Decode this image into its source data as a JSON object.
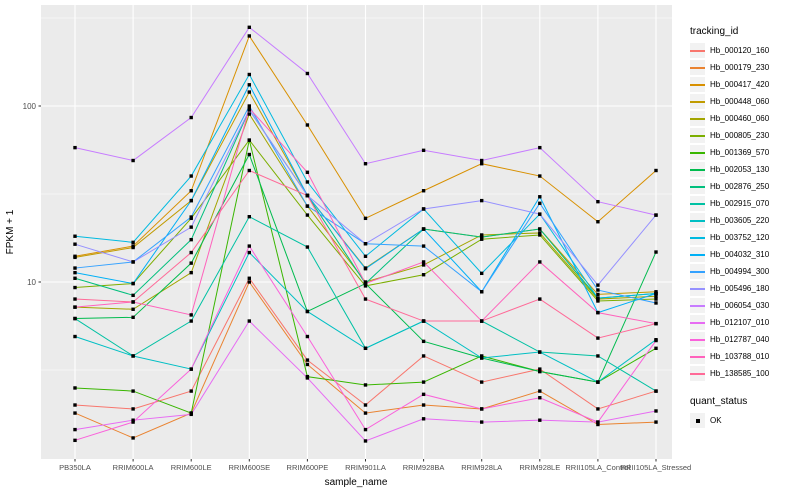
{
  "figure": {
    "panel_bg": "#EBEBEB",
    "grid_color": "#FFFFFF",
    "tick_label_color": "#4D4D4D"
  },
  "chart_data": {
    "type": "line",
    "title": "",
    "xlabel": "sample_name",
    "ylabel": "FPKM + 1",
    "y_scale": "log10",
    "ylim": [
      1.0,
      360
    ],
    "y_ticks": [
      100,
      10
    ],
    "y_tick_labels": [
      "100",
      "10"
    ],
    "y_minor_ticks": [
      316.23,
      31.62,
      3.162
    ],
    "grid": true,
    "legend_position": "right",
    "point_shape": "square",
    "point_color": "#000000",
    "categories": [
      "PB350LA",
      "RRIM600LA",
      "RRIM600LE",
      "RRIM600SE",
      "RRIM600PE",
      "RRIM901LA",
      "RRIM928BA",
      "RRIM928LA",
      "RRIM928LE",
      "RRII105LA_Control",
      "RRII105LA_Stressed"
    ],
    "series": [
      {
        "name": "Hb_000120_160",
        "color": "#F8766D",
        "values": [
          2.0,
          1.9,
          2.4,
          10.5,
          3.6,
          2.0,
          3.8,
          2.7,
          3.2,
          1.9,
          2.4
        ]
      },
      {
        "name": "Hb_000179_230",
        "color": "#EA8331",
        "values": [
          1.8,
          1.3,
          1.8,
          10.0,
          3.4,
          1.8,
          2.0,
          1.9,
          2.4,
          1.55,
          1.6
        ]
      },
      {
        "name": "Hb_000417_420",
        "color": "#D89000",
        "values": [
          14,
          16,
          33,
          250,
          78,
          23,
          33,
          47,
          40,
          22,
          43
        ]
      },
      {
        "name": "Hb_000448_060",
        "color": "#C09B00",
        "values": [
          13.8,
          15.7,
          29,
          120,
          31,
          12,
          20,
          18,
          20,
          8.5,
          8.8
        ]
      },
      {
        "name": "Hb_000460_060",
        "color": "#A3A500",
        "values": [
          7.2,
          7.0,
          11.3,
          90,
          27,
          10,
          12.5,
          18.5,
          19,
          8.0,
          8.3
        ]
      },
      {
        "name": "Hb_000805_230",
        "color": "#7CAE00",
        "values": [
          9.3,
          9.8,
          23,
          64,
          24,
          9.5,
          11,
          17.5,
          18.5,
          7.8,
          8.0
        ]
      },
      {
        "name": "Hb_001369_570",
        "color": "#39B600",
        "values": [
          2.5,
          2.4,
          1.8,
          64,
          2.9,
          2.6,
          2.7,
          3.8,
          3.1,
          2.7,
          4.2
        ]
      },
      {
        "name": "Hb_002053_130",
        "color": "#00BB4E",
        "values": [
          6.2,
          6.3,
          12.8,
          53,
          6.8,
          9.8,
          4.6,
          3.7,
          3.1,
          2.7,
          14.8
        ]
      },
      {
        "name": "Hb_002876_250",
        "color": "#00BF7D",
        "values": [
          10.5,
          8.4,
          17.4,
          95,
          31,
          9.8,
          20,
          18,
          20,
          8.1,
          8.6
        ]
      },
      {
        "name": "Hb_002915_070",
        "color": "#00C1A3",
        "values": [
          6.2,
          3.8,
          6.0,
          23.5,
          15.8,
          4.2,
          6.0,
          6.0,
          4.0,
          3.8,
          2.4
        ]
      },
      {
        "name": "Hb_003605_220",
        "color": "#00BFC4",
        "values": [
          4.9,
          3.8,
          3.2,
          14.7,
          6.8,
          4.2,
          6.0,
          3.7,
          4.0,
          2.7,
          4.7
        ]
      },
      {
        "name": "Hb_003752_120",
        "color": "#00BAE0",
        "values": [
          18.2,
          16.8,
          40,
          151,
          37,
          14,
          26,
          11.2,
          24.3,
          8.1,
          8.6
        ]
      },
      {
        "name": "Hb_004032_310",
        "color": "#00B0F6",
        "values": [
          11.3,
          9.8,
          29,
          132,
          31,
          11.9,
          20,
          8.8,
          30.5,
          6.7,
          8.6
        ]
      },
      {
        "name": "Hb_004994_300",
        "color": "#35A2FF",
        "values": [
          12.0,
          13.0,
          23.4,
          100,
          27,
          16.5,
          16,
          8.8,
          28,
          9.0,
          7.6
        ]
      },
      {
        "name": "Hb_005496_180",
        "color": "#9590FF",
        "values": [
          16.4,
          13.0,
          20.5,
          95,
          31,
          16.5,
          26,
          29,
          24.3,
          9.6,
          24
        ]
      },
      {
        "name": "Hb_006054_030",
        "color": "#C77CFF",
        "values": [
          58,
          49,
          86,
          280,
          153,
          47,
          56,
          49,
          58,
          28.6,
          24
        ]
      },
      {
        "name": "Hb_012107_010",
        "color": "#E76BF3",
        "values": [
          1.45,
          1.64,
          1.77,
          6.0,
          2.85,
          1.25,
          1.67,
          1.6,
          1.64,
          1.6,
          1.85
        ]
      },
      {
        "name": "Hb_012787_040",
        "color": "#FA62DB",
        "values": [
          1.26,
          1.6,
          3.2,
          16,
          4.9,
          1.45,
          2.3,
          1.9,
          2.2,
          1.6,
          4.65
        ]
      },
      {
        "name": "Hb_103788_010",
        "color": "#FF62BC",
        "values": [
          7.2,
          7.7,
          6.5,
          97,
          42,
          9.8,
          13,
          6.0,
          13,
          6.7,
          5.8
        ]
      },
      {
        "name": "Hb_138585_100",
        "color": "#FF6A98",
        "values": [
          8.0,
          7.7,
          14.7,
          43,
          31,
          8.0,
          6.0,
          6.0,
          8.0,
          4.8,
          5.8
        ]
      }
    ]
  },
  "legend": {
    "tracking_title": "tracking_id",
    "quant_title": "quant_status",
    "quant_items": [
      {
        "label": "OK",
        "shape": "square",
        "color": "#000000"
      }
    ]
  }
}
